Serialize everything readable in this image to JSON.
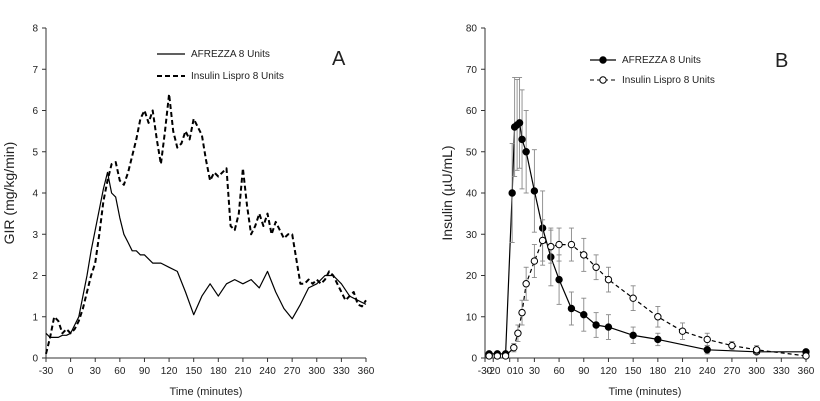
{
  "chart_data": [
    {
      "type": "line",
      "panel_label": "A",
      "xlabel": "Time (minutes)",
      "ylabel": "GIR (mg/kg/min)",
      "xlim": [
        -30,
        360
      ],
      "ylim": [
        0,
        8
      ],
      "xticks": [
        -30,
        0,
        30,
        60,
        90,
        120,
        150,
        180,
        210,
        240,
        270,
        300,
        330,
        360
      ],
      "yticks": [
        0,
        1,
        2,
        3,
        4,
        5,
        6,
        7,
        8
      ],
      "legend_position": "top-right",
      "series": [
        {
          "name": "AFREZZA 8 Units",
          "style": "solid",
          "x": [
            -30,
            -25,
            -20,
            -15,
            -10,
            -5,
            0,
            5,
            10,
            15,
            20,
            25,
            30,
            35,
            40,
            45,
            50,
            55,
            60,
            65,
            70,
            75,
            80,
            85,
            90,
            100,
            110,
            120,
            130,
            140,
            150,
            160,
            170,
            180,
            190,
            200,
            210,
            220,
            230,
            240,
            250,
            260,
            270,
            280,
            290,
            300,
            310,
            320,
            330,
            340,
            350,
            360
          ],
          "y": [
            0.6,
            0.5,
            0.5,
            0.5,
            0.55,
            0.55,
            0.6,
            0.8,
            1.0,
            1.5,
            2.0,
            2.6,
            3.1,
            3.6,
            4.1,
            4.5,
            4.0,
            3.9,
            3.4,
            3.0,
            2.8,
            2.6,
            2.6,
            2.5,
            2.5,
            2.3,
            2.3,
            2.2,
            2.1,
            1.6,
            1.05,
            1.5,
            1.8,
            1.5,
            1.8,
            1.9,
            1.8,
            1.9,
            1.7,
            2.1,
            1.6,
            1.2,
            0.95,
            1.3,
            1.7,
            1.8,
            2.0,
            2.0,
            1.8,
            1.5,
            1.4,
            1.3
          ]
        },
        {
          "name": "Insulin Lispro 8 Units",
          "style": "dashed",
          "x": [
            -30,
            -25,
            -20,
            -15,
            -10,
            -5,
            0,
            5,
            10,
            15,
            20,
            25,
            30,
            35,
            40,
            45,
            50,
            55,
            60,
            65,
            70,
            75,
            80,
            85,
            90,
            95,
            100,
            105,
            110,
            115,
            120,
            125,
            130,
            135,
            140,
            145,
            150,
            155,
            160,
            165,
            170,
            175,
            180,
            185,
            190,
            195,
            200,
            205,
            210,
            215,
            220,
            225,
            230,
            235,
            240,
            245,
            250,
            255,
            260,
            265,
            270,
            275,
            280,
            285,
            290,
            295,
            300,
            305,
            310,
            315,
            320,
            325,
            330,
            335,
            340,
            345,
            350,
            355,
            360
          ],
          "y": [
            0.1,
            0.5,
            1.0,
            0.9,
            0.6,
            0.7,
            0.6,
            0.7,
            0.9,
            1.2,
            1.6,
            2.0,
            2.3,
            3.0,
            3.8,
            4.3,
            4.7,
            4.75,
            4.3,
            4.2,
            4.5,
            4.9,
            5.3,
            5.8,
            6.0,
            5.7,
            6.0,
            5.3,
            4.7,
            5.5,
            6.4,
            5.5,
            5.1,
            5.2,
            5.5,
            5.3,
            5.8,
            5.6,
            5.4,
            4.8,
            4.3,
            4.5,
            4.4,
            4.5,
            4.6,
            3.2,
            3.1,
            3.5,
            4.6,
            3.7,
            3.0,
            3.2,
            3.5,
            3.2,
            3.5,
            3.0,
            3.3,
            3.1,
            2.9,
            3.0,
            3.0,
            2.4,
            1.8,
            1.8,
            1.9,
            1.8,
            1.9,
            1.8,
            1.9,
            2.1,
            2.0,
            1.8,
            1.6,
            1.4,
            1.5,
            1.6,
            1.3,
            1.25,
            1.4
          ]
        }
      ]
    },
    {
      "type": "line",
      "panel_label": "B",
      "xlabel": "Time (minutes)",
      "ylabel": "Insulin (µU/mL)",
      "xlim": [
        -30,
        360
      ],
      "ylim": [
        0,
        80
      ],
      "xticks": [
        -30,
        -20,
        0,
        10,
        30,
        60,
        90,
        120,
        150,
        180,
        210,
        240,
        270,
        300,
        330,
        360
      ],
      "yticks": [
        0,
        10,
        20,
        30,
        40,
        50,
        60,
        70,
        80
      ],
      "legend_position": "top-right",
      "series": [
        {
          "name": "AFREZZA 8 Units",
          "style": "solid-filled-markers",
          "x": [
            -25,
            -15,
            -5,
            3,
            6,
            9,
            12,
            15,
            20,
            30,
            40,
            50,
            60,
            75,
            90,
            105,
            120,
            150,
            180,
            240,
            300,
            360
          ],
          "y": [
            1.0,
            1.0,
            1.0,
            40,
            56,
            56.5,
            57,
            53,
            50,
            40.5,
            31.5,
            24.5,
            19,
            12,
            10.5,
            8,
            7.5,
            5.5,
            4.5,
            2.0,
            1.5,
            1.5
          ],
          "err": [
            0,
            0,
            0,
            12,
            12,
            11,
            11,
            12,
            10,
            10,
            9,
            7,
            6,
            4,
            4,
            3,
            3,
            2,
            1.5,
            1,
            0.5,
            0.5
          ]
        },
        {
          "name": "Insulin Lispro 8 Units",
          "style": "dashed-open-markers",
          "x": [
            -25,
            -15,
            -5,
            5,
            10,
            15,
            20,
            30,
            40,
            50,
            60,
            75,
            90,
            105,
            120,
            150,
            180,
            210,
            240,
            270,
            300,
            360
          ],
          "y": [
            0.5,
            0.5,
            0.5,
            2.5,
            6,
            11,
            18,
            23.5,
            28.5,
            27,
            27.5,
            27.5,
            25,
            22,
            19,
            14.5,
            10,
            6.5,
            4.5,
            3.0,
            2.0,
            0.5
          ],
          "err": [
            0,
            0,
            0,
            1,
            2,
            3,
            4,
            4,
            5,
            4,
            4,
            4,
            4,
            3,
            3,
            3,
            2.5,
            2,
            1.5,
            1,
            1,
            0.5
          ]
        }
      ]
    }
  ]
}
